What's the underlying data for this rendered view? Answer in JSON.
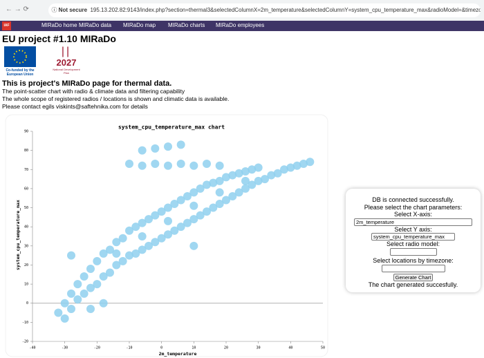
{
  "browser": {
    "security": "Not secure",
    "url": "195.13.202.82:9143/index.php?section=thermal3&selectedColumnX=2m_temperature&selectedColumnY=system_cpu_temperature_max&radioModel=&timezone..."
  },
  "nav": {
    "logo": "IAF",
    "items": [
      "MIRaDo home",
      "MIRaDo data",
      "MIRaDo map",
      "MIRaDo charts",
      "MIRaDo employees"
    ]
  },
  "header": {
    "title": "EU project #1.10 MIRaDo",
    "eu_logo": "Co-funded by the European Union",
    "nap_logo_year": "2027",
    "nap_logo_text": "National Development Plan"
  },
  "intro": {
    "heading": "This is project's MIRaDo page for thermal data.",
    "lines": [
      "The point-scatter chart with radio & climate data and filtering capability",
      "The whole scope of registered radios / locations is shown and climatic data is available.",
      "Please contact egils viskints@saftehnika.com for details"
    ]
  },
  "panel": {
    "status": "DB is connected successfully.",
    "prompt": "Please select the chart parameters:",
    "x_label": "Select X-axis:",
    "x_value": "2m_temperature",
    "y_label": "Select Y axis:",
    "y_value": "system_cpu_temperature_max",
    "radio_label": "Select radio model:",
    "tz_label": "Select locations by timezone:",
    "button": "Generate Chart",
    "result": "The chart generated succesfully."
  },
  "chart_data": {
    "type": "scatter",
    "title": "system_cpu_temperature_max chart",
    "xlabel": "2m_temperature",
    "ylabel": "system_cpu_temperature_max",
    "color": "#8fd0ef",
    "xlim": [
      -40,
      50
    ],
    "ylim": [
      -20,
      90
    ],
    "xticks": [
      -40,
      -30,
      -20,
      -10,
      0,
      10,
      20,
      30,
      40,
      50
    ],
    "yticks": [
      -20,
      -10,
      0,
      10,
      20,
      30,
      40,
      50,
      60,
      70,
      80,
      90
    ],
    "x": [
      -32,
      -30,
      -30,
      -28,
      -28,
      -26,
      -26,
      -24,
      -24,
      -22,
      -22,
      -20,
      -20,
      -18,
      -18,
      -16,
      -16,
      -14,
      -14,
      -12,
      -12,
      -10,
      -10,
      -8,
      -8,
      -6,
      -6,
      -4,
      -4,
      -2,
      -2,
      0,
      0,
      2,
      2,
      4,
      4,
      6,
      6,
      8,
      8,
      10,
      10,
      12,
      12,
      14,
      14,
      16,
      16,
      18,
      18,
      20,
      20,
      22,
      22,
      24,
      24,
      26,
      26,
      28,
      28,
      30,
      30,
      32,
      34,
      36,
      38,
      40,
      42,
      44,
      46,
      -14,
      -6,
      2,
      10,
      18,
      26,
      -10,
      -6,
      -2,
      2,
      6,
      10,
      14,
      18,
      -6,
      -2,
      2,
      6,
      -22,
      -18,
      10,
      -28
    ],
    "y": [
      -5,
      -8,
      0,
      -3,
      5,
      2,
      10,
      5,
      14,
      8,
      18,
      10,
      22,
      14,
      26,
      16,
      28,
      20,
      32,
      22,
      34,
      25,
      38,
      26,
      40,
      28,
      42,
      30,
      44,
      32,
      46,
      34,
      48,
      36,
      50,
      38,
      52,
      40,
      54,
      42,
      56,
      44,
      58,
      46,
      60,
      48,
      62,
      50,
      63,
      52,
      64,
      54,
      66,
      56,
      67,
      58,
      68,
      60,
      69,
      62,
      70,
      64,
      71,
      65,
      67,
      68,
      70,
      71,
      72,
      73,
      74,
      26,
      35,
      43,
      51,
      58,
      64,
      73,
      72,
      73,
      72,
      73,
      72,
      73,
      72,
      80,
      81,
      82,
      83,
      -3,
      0,
      30,
      25
    ]
  }
}
